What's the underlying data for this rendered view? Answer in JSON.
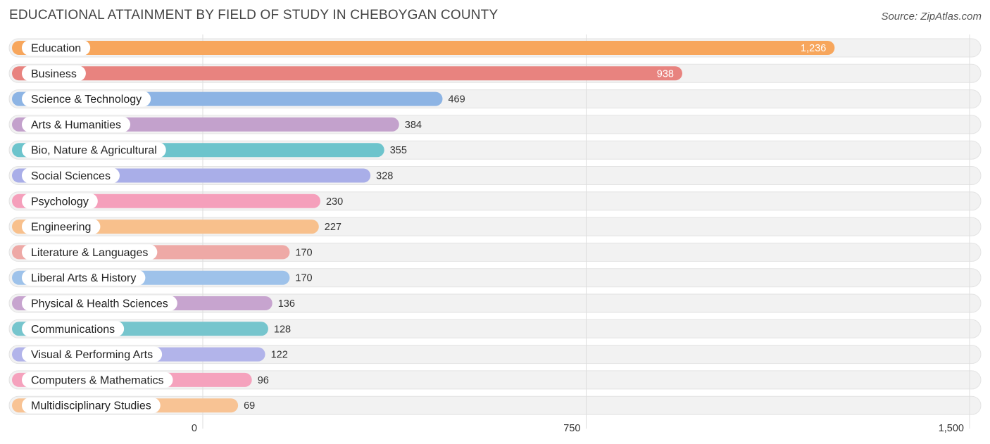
{
  "title": "EDUCATIONAL ATTAINMENT BY FIELD OF STUDY IN CHEBOYGAN COUNTY",
  "source": "Source: ZipAtlas.com",
  "chart_data": {
    "type": "bar",
    "orientation": "horizontal",
    "title": "EDUCATIONAL ATTAINMENT BY FIELD OF STUDY IN CHEBOYGAN COUNTY",
    "categories": [
      "Education",
      "Business",
      "Science & Technology",
      "Arts & Humanities",
      "Bio, Nature & Agricultural",
      "Social Sciences",
      "Psychology",
      "Engineering",
      "Literature & Languages",
      "Liberal Arts & History",
      "Physical & Health Sciences",
      "Communications",
      "Visual & Performing Arts",
      "Computers & Mathematics",
      "Multidisciplinary Studies"
    ],
    "values": [
      1236,
      938,
      469,
      384,
      355,
      328,
      230,
      227,
      170,
      170,
      136,
      128,
      122,
      96,
      69
    ],
    "value_labels": [
      "1,236",
      "938",
      "469",
      "384",
      "355",
      "328",
      "230",
      "227",
      "170",
      "170",
      "136",
      "128",
      "122",
      "96",
      "69"
    ],
    "colors": [
      "#f7a65c",
      "#e8837f",
      "#8db4e4",
      "#c3a1cc",
      "#6dc4cc",
      "#a9aee8",
      "#f59fbb",
      "#f8c08c",
      "#eea9a6",
      "#9ec2ea",
      "#c7a4cf",
      "#76c5cd",
      "#b2b4ea",
      "#f5a2bd",
      "#f8c394"
    ],
    "xlim": [
      0,
      1500
    ],
    "ticks": [
      0,
      750,
      1500
    ],
    "tick_labels": [
      "0",
      "750",
      "1,500"
    ],
    "grid": true,
    "xlabel": "",
    "ylabel": ""
  }
}
